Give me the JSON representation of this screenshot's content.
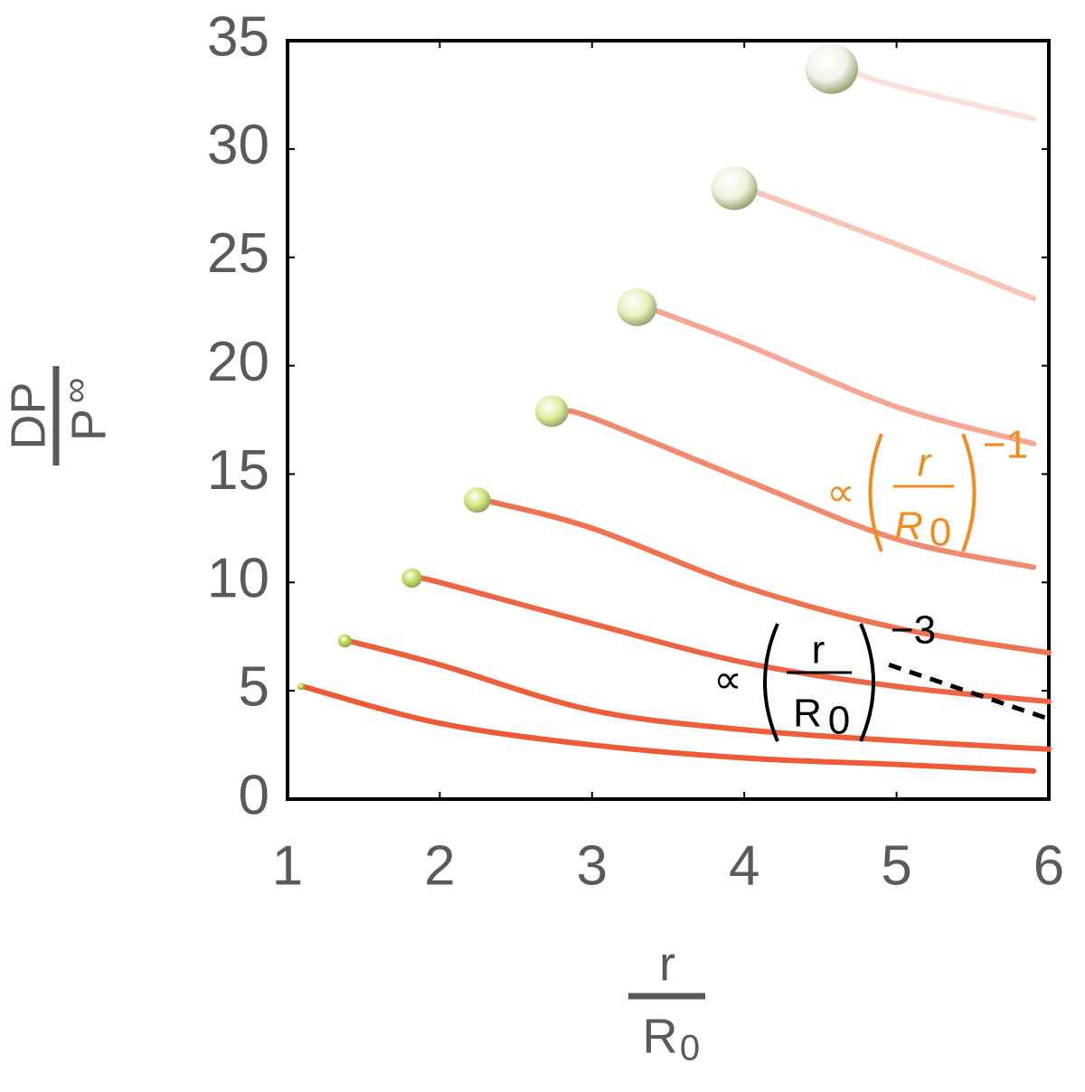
{
  "chart_data": {
    "type": "line",
    "xlim": [
      1,
      6
    ],
    "ylim": [
      0,
      35
    ],
    "xticks": [
      1,
      2,
      3,
      4,
      5,
      6
    ],
    "yticks": [
      0,
      5,
      10,
      15,
      20,
      25,
      30,
      35
    ],
    "x_label": {
      "numerator": "r",
      "denominator": "R",
      "subscript": "0"
    },
    "y_label": {
      "numerator": "DP",
      "denominator": "P",
      "superscript": "∞"
    },
    "series": [
      {
        "color": "#ee5a35",
        "marker_color": "#a8cc2c",
        "x": [
          1.1,
          2,
          3,
          4,
          5,
          5.9
        ],
        "values": [
          5.2,
          3.5,
          2.5,
          1.9,
          1.6,
          1.3
        ]
      },
      {
        "color": "#ee5e39",
        "marker_color": "#b2d13a",
        "x": [
          1.4,
          2,
          3,
          4,
          5,
          6
        ],
        "values": [
          7.3,
          6.2,
          4.1,
          3.2,
          2.7,
          2.3
        ]
      },
      {
        "color": "#ef6442",
        "marker_color": "#bedb55",
        "x": [
          1.85,
          2,
          3,
          4,
          5,
          6
        ],
        "values": [
          10.2,
          10.0,
          8.1,
          6.3,
          5.2,
          4.5
        ]
      },
      {
        "color": "#f0724f",
        "marker_color": "#cde574",
        "x": [
          2.29,
          3,
          4,
          5,
          6
        ],
        "values": [
          13.8,
          12.5,
          9.8,
          7.9,
          6.75
        ]
      },
      {
        "color": "#f28a6e",
        "marker_color": "#dcee9a",
        "x": [
          2.79,
          3,
          4,
          5,
          5.9
        ],
        "values": [
          17.9,
          17.6,
          14.75,
          12.0,
          10.7
        ]
      },
      {
        "color": "#f5a792",
        "marker_color": "#e6f0bc",
        "x": [
          3.36,
          4,
          5,
          5.9
        ],
        "values": [
          22.7,
          21.0,
          18.1,
          16.4
        ]
      },
      {
        "color": "#f8c4b5",
        "marker_color": "#eef2dc",
        "x": [
          4.01,
          5,
          5.9
        ],
        "values": [
          28.2,
          25.6,
          23.1
        ]
      },
      {
        "color": "#fae0d8",
        "marker_color": "#f2f2ec",
        "x": [
          4.66,
          5,
          5.9
        ],
        "values": [
          33.7,
          32.9,
          31.4
        ]
      }
    ],
    "dashed_line": {
      "color": "#000000",
      "x": [
        4.95,
        6
      ],
      "values": [
        6.2,
        3.7
      ]
    },
    "annotations": [
      {
        "prefix": "∝",
        "numerator": "r",
        "denominator": "R",
        "subscript": "0",
        "exponent": "−1",
        "color": "#f28c1e"
      },
      {
        "prefix": "∝",
        "numerator": "r",
        "denominator": "R",
        "subscript": "0",
        "exponent": "−3",
        "color": "#000000"
      }
    ]
  }
}
